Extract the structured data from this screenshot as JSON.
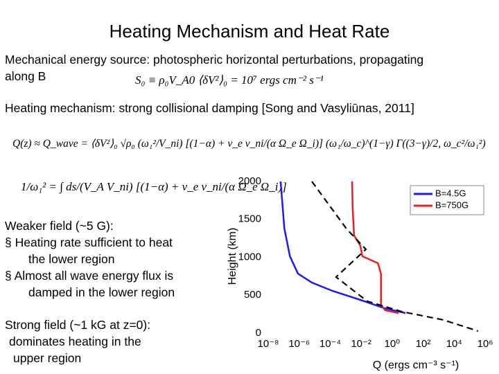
{
  "header": {
    "title": "Heating Mechanism and Heat Rate"
  },
  "body": {
    "source_lines": [
      "Mechanical energy source: photospheric horizontal perturbations, propagating",
      "along B"
    ],
    "eq_source": "S₀ ≡ ρ₀V_A0 ⟨δV²⟩₀ = 10⁷  ergs cm⁻² s⁻¹",
    "mechanism": "Heating mechanism: strong collisional damping [Song and Vasyliūnas, 2011]",
    "eq_heating": "Q(z) ≈ Q_wave = ⟨δV²⟩₀ √ρ₀ (ω₁²/V_ni) [(1−α) + ν_e ν_ni/(α Ω_e Ω_i)] (ω₁/ω_c)^(1−γ) Γ((3−γ)/2, ω_c²/ω₁²)",
    "eq_omega": "1/ω₁² = ∫ ds/(V_A V_ni) [(1−α) + ν_e ν_ni/(α Ω_e Ω_i)]",
    "weak_lines": [
      "Weaker field (~5 G):",
      "§  Heating rate sufficient to heat",
      "the lower region",
      "§  Almost all wave energy flux is",
      "damped in the lower region"
    ],
    "strong_lines": [
      "Strong field (~1 kG at z=0):",
      "dominates heating in the",
      "upper region"
    ]
  },
  "chart_data": {
    "type": "line",
    "xlabel": "Q (ergs cm⁻³ s⁻¹)",
    "ylabel": "Height (km)",
    "xscale": "log",
    "xlim": [
      1e-08,
      1000000.0
    ],
    "xticks": [
      {
        "value": 1e-08,
        "label": "10⁻⁸"
      },
      {
        "value": 1e-06,
        "label": "10⁻⁶"
      },
      {
        "value": 0.0001,
        "label": "10⁻⁴"
      },
      {
        "value": 0.01,
        "label": "10⁻²"
      },
      {
        "value": 1,
        "label": "10⁰"
      },
      {
        "value": 100,
        "label": "10²"
      },
      {
        "value": 10000,
        "label": "10⁴"
      },
      {
        "value": 1000000,
        "label": "10⁶"
      }
    ],
    "ylim": [
      0,
      2000
    ],
    "yticks": [
      0,
      500,
      1000,
      1500,
      2000
    ],
    "legend": "upper right",
    "series": [
      {
        "name": "B=4.5G",
        "color": "#1a1aff",
        "x": [
          6.3e-08,
          1.1e-07,
          2.5e-07,
          8.3e-07,
          6.6e-06,
          0.00014,
          0.0089,
          0.32,
          7.2
        ],
        "values": [
          2000,
          1379,
          1014,
          785,
          667,
          557,
          438,
          329,
          265
        ]
      },
      {
        "name": "B=750G",
        "color": "#e82020",
        "x": [
          0.0026,
          0.0028,
          0.0035,
          0.0089,
          0.012,
          0.12,
          0.19,
          0.19,
          0.36,
          2.6
        ],
        "values": [
          2000,
          1653,
          1288,
          1151,
          1014,
          922,
          785,
          374,
          301,
          265
        ]
      },
      {
        "color": "#000000",
        "dashed": true,
        "x": [
          6.6e-06,
          0.0011,
          0.02,
          0.00024,
          0.025,
          4.3,
          2000,
          350000
        ],
        "values": [
          2000,
          1379,
          1105,
          740,
          420,
          283,
          174,
          27
        ]
      }
    ]
  }
}
